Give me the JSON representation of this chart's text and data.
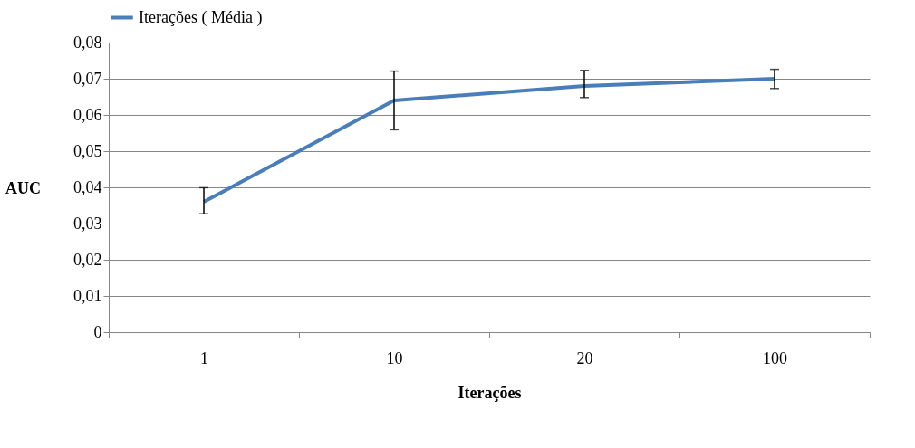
{
  "chart_data": {
    "type": "line",
    "xlabel": "Iterações",
    "ylabel": "AUC",
    "categories": [
      "1",
      "10",
      "20",
      "100"
    ],
    "series": [
      {
        "name": "Iterações ( Média )",
        "color": "#4a7ebb",
        "values": [
          0.036,
          0.064,
          0.068,
          0.07
        ],
        "errors": [
          [
            0.0327,
            0.0399
          ],
          [
            0.0559,
            0.0721
          ],
          [
            0.0648,
            0.0723
          ],
          [
            0.0673,
            0.0726
          ]
        ]
      }
    ],
    "ylim": [
      0,
      0.08
    ],
    "yticks": [
      0,
      {
        "value": 0.01,
        "label": "0,01"
      },
      {
        "value": 0.02,
        "label": "0,02"
      },
      {
        "value": 0.03,
        "label": "0,03"
      },
      {
        "value": 0.04,
        "label": "0,04"
      },
      {
        "value": 0.05,
        "label": "0,05"
      },
      {
        "value": 0.06,
        "label": "0,06"
      },
      {
        "value": 0.07,
        "label": "0,07"
      },
      {
        "value": 0.08,
        "label": "0,08"
      }
    ],
    "grid": "y",
    "legend": "top",
    "marker": "none",
    "line_style": "solid"
  }
}
